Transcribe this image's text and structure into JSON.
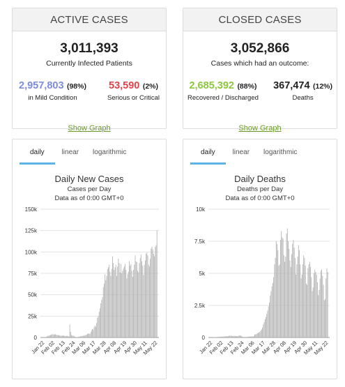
{
  "active": {
    "header": "ACTIVE CASES",
    "total": "3,011,393",
    "total_label": "Currently Infected Patients",
    "mild_value": "2,957,803",
    "mild_pct": "(98%)",
    "mild_label": "in Mild Condition",
    "serious_value": "53,590",
    "serious_pct": "(2%)",
    "serious_label": "Serious or Critical",
    "show_graph": "Show Graph"
  },
  "closed": {
    "header": "CLOSED CASES",
    "total": "3,052,866",
    "total_label": "Cases which had an outcome:",
    "recovered_value": "2,685,392",
    "recovered_pct": "(88%)",
    "recovered_label": "Recovered / Discharged",
    "deaths_value": "367,474",
    "deaths_pct": "(12%)",
    "deaths_label": "Deaths",
    "show_graph": "Show Graph"
  },
  "colors": {
    "mild": "#7d8cdc",
    "serious": "#e8404a",
    "recovered": "#8dc63f",
    "deaths": "#222222",
    "link": "#6a9a26",
    "tab_active": "#5bb4e5",
    "bar": "#b4b4b4"
  },
  "tabs": [
    "daily",
    "linear",
    "logarithmic"
  ],
  "chart_data": [
    {
      "type": "bar",
      "title": "Daily New Cases",
      "subtitle": "Cases per Day",
      "subtitle2": "Data as of 0:00 GMT+0",
      "ylim": [
        0,
        150000
      ],
      "yticks": [
        "0",
        "25k",
        "50k",
        "75k",
        "100k",
        "125k",
        "150k"
      ],
      "ytick_values": [
        0,
        25000,
        50000,
        75000,
        100000,
        125000,
        150000
      ],
      "xticks": [
        "Jan 22",
        "Feb 02",
        "Feb 13",
        "Feb 24",
        "Mar 06",
        "Mar 17",
        "Mar 28",
        "Apr 08",
        "Apr 19",
        "Apr 30",
        "May 11",
        "May 22"
      ],
      "values": [
        0,
        100,
        300,
        400,
        700,
        800,
        1500,
        2000,
        2100,
        2600,
        2800,
        3200,
        3900,
        3700,
        3200,
        3900,
        3700,
        3200,
        2800,
        3000,
        2600,
        2400,
        2000,
        2100,
        2000,
        2500,
        2000,
        1800,
        1700,
        1900,
        1900,
        1500,
        1300,
        15200,
        6500,
        3000,
        2100,
        1900,
        2000,
        900,
        600,
        400,
        400,
        600,
        900,
        1000,
        1500,
        1800,
        1600,
        2200,
        1900,
        2800,
        2800,
        3400,
        4000,
        4800,
        4500,
        4100,
        6100,
        8000,
        10000,
        9200,
        12000,
        14000,
        12600,
        17000,
        23000,
        25000,
        30000,
        34000,
        40000,
        44000,
        47000,
        59000,
        63000,
        74000,
        67000,
        72000,
        80000,
        82000,
        85000,
        77000,
        72000,
        80000,
        95000,
        87000,
        79000,
        82000,
        85000,
        72000,
        83000,
        92000,
        87000,
        76000,
        86000,
        75000,
        78000,
        81000,
        83000,
        86000,
        79000,
        69000,
        74000,
        77000,
        89000,
        84000,
        86000,
        78000,
        71000,
        79000,
        85000,
        96000,
        89000,
        88000,
        78000,
        76000,
        87000,
        93000,
        97000,
        89000,
        84000,
        73000,
        85000,
        90000,
        98000,
        99000,
        96000,
        85000,
        83000,
        92000,
        104000,
        106000,
        103000,
        98000,
        95000,
        106000,
        108000,
        125000
      ]
    },
    {
      "type": "bar",
      "title": "Daily Deaths",
      "subtitle": "Deaths per Day",
      "subtitle2": "Data as of 0:00 GMT+0",
      "ylim": [
        0,
        10000
      ],
      "yticks": [
        "0",
        "2.5k",
        "5k",
        "7.5k",
        "10k"
      ],
      "ytick_values": [
        0,
        2500,
        5000,
        7500,
        10000
      ],
      "xticks": [
        "Jan 22",
        "Feb 02",
        "Feb 13",
        "Feb 24",
        "Mar 06",
        "Mar 17",
        "Mar 28",
        "Apr 08",
        "Apr 19",
        "Apr 30",
        "May 11",
        "May 22"
      ],
      "values": [
        0,
        1,
        8,
        16,
        15,
        24,
        26,
        26,
        38,
        43,
        46,
        45,
        57,
        64,
        66,
        73,
        73,
        86,
        89,
        97,
        108,
        97,
        146,
        121,
        143,
        142,
        105,
        98,
        136,
        114,
        118,
        109,
        97,
        150,
        143,
        143,
        138,
        99,
        52,
        29,
        44,
        47,
        41,
        35,
        58,
        67,
        81,
        69,
        71,
        64,
        105,
        97,
        227,
        247,
        266,
        340,
        349,
        408,
        430,
        538,
        632,
        784,
        1027,
        1195,
        1418,
        1603,
        1847,
        2100,
        2430,
        2720,
        3250,
        3600,
        3980,
        4250,
        4700,
        5700,
        6200,
        7500,
        7300,
        6800,
        5600,
        5700,
        7600,
        8300,
        7800,
        7700,
        6400,
        5900,
        6300,
        8100,
        8500,
        7500,
        6900,
        6000,
        5500,
        6500,
        7300,
        7600,
        7000,
        6200,
        4900,
        5700,
        6300,
        7200,
        6800,
        5700,
        4600,
        4900,
        5700,
        6400,
        6200,
        5600,
        4200,
        4100,
        5400,
        5700,
        5900,
        5500,
        4700,
        3600,
        3900,
        5000,
        5300,
        5100,
        4900,
        4300,
        3300,
        3700,
        4600,
        5200,
        5300,
        4800,
        4100,
        2900,
        3000,
        4600,
        5400,
        5100
      ]
    }
  ]
}
